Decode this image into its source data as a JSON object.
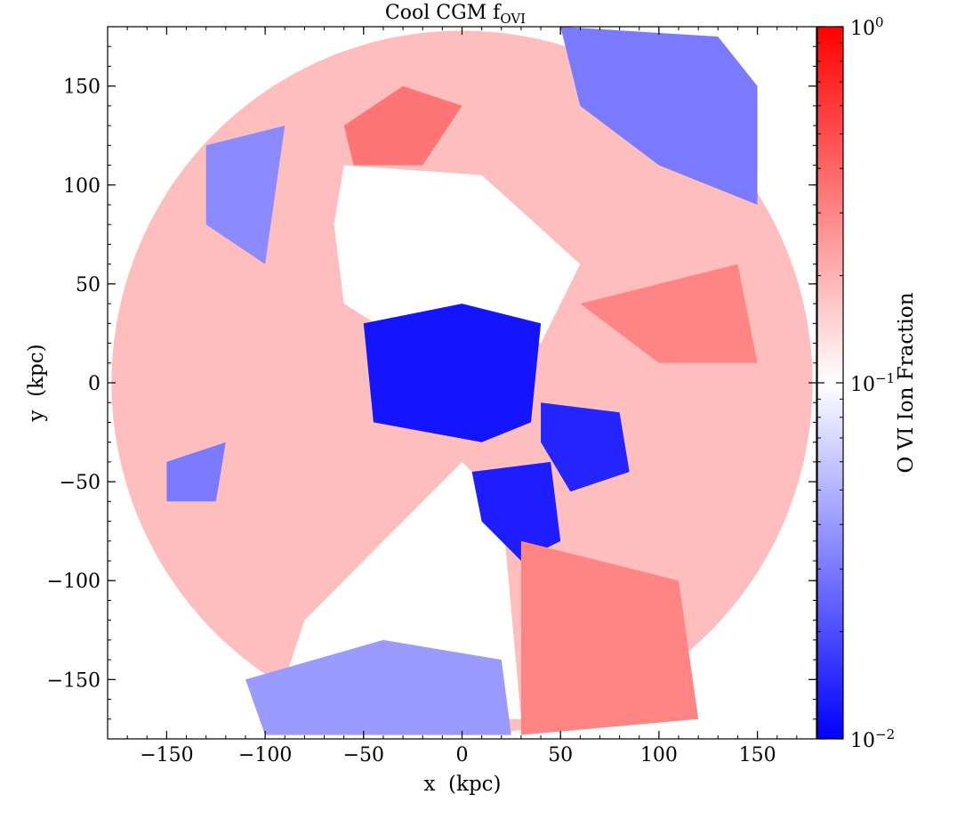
{
  "chart_data": {
    "type": "heatmap",
    "title": "Cool CGM f",
    "title_subscript": "OVI",
    "xlabel": "x  (kpc)",
    "ylabel": "y  (kpc)",
    "xlim": [
      -180,
      180
    ],
    "ylim": [
      -180,
      180
    ],
    "xticks": [
      -150,
      -100,
      -50,
      0,
      50,
      100,
      150
    ],
    "xtick_labels": [
      "−150",
      "−100",
      "−50",
      "0",
      "50",
      "100",
      "150"
    ],
    "yticks": [
      -150,
      -100,
      -50,
      0,
      50,
      100,
      150
    ],
    "ytick_labels": [
      "−150",
      "−100",
      "−50",
      "0",
      "50",
      "100",
      "150"
    ],
    "colorbar": {
      "label": "O VI Ion Fraction",
      "scale": "log",
      "range": [
        0.01,
        1
      ],
      "colormap": "bwr",
      "ticks": [
        {
          "value": 1,
          "base": "10",
          "exp": "0"
        },
        {
          "value": 0.1,
          "base": "10",
          "exp": "−1"
        },
        {
          "value": 0.01,
          "base": "10",
          "exp": "−2"
        }
      ]
    },
    "regions": [
      {
        "name": "outer-ring",
        "level": 0.18,
        "shape": "disk",
        "cx": 0,
        "cy": 0,
        "r": 178
      },
      {
        "name": "central-hole",
        "level": null,
        "points": [
          [
            -60,
            110
          ],
          [
            10,
            105
          ],
          [
            60,
            60
          ],
          [
            40,
            20
          ],
          [
            -20,
            15
          ],
          [
            -60,
            40
          ],
          [
            -65,
            80
          ]
        ]
      },
      {
        "name": "lower-hole",
        "level": null,
        "points": [
          [
            -80,
            -120
          ],
          [
            0,
            -40
          ],
          [
            20,
            -60
          ],
          [
            30,
            -170
          ],
          [
            -60,
            -170
          ],
          [
            -90,
            -150
          ]
        ]
      },
      {
        "name": "center-core",
        "level": 0.012,
        "points": [
          [
            -50,
            30
          ],
          [
            0,
            40
          ],
          [
            40,
            30
          ],
          [
            35,
            -20
          ],
          [
            10,
            -30
          ],
          [
            -45,
            -20
          ]
        ]
      },
      {
        "name": "lower-stream",
        "level": 0.013,
        "points": [
          [
            5,
            -45
          ],
          [
            45,
            -40
          ],
          [
            50,
            -80
          ],
          [
            30,
            -90
          ],
          [
            10,
            -70
          ]
        ]
      },
      {
        "name": "right-clumps",
        "level": 0.014,
        "points": [
          [
            40,
            -10
          ],
          [
            80,
            -15
          ],
          [
            85,
            -45
          ],
          [
            55,
            -55
          ],
          [
            40,
            -30
          ]
        ]
      },
      {
        "name": "bottom-blocks",
        "level": 0.04,
        "points": [
          [
            -110,
            -150
          ],
          [
            -40,
            -130
          ],
          [
            20,
            -140
          ],
          [
            25,
            -178
          ],
          [
            -100,
            -178
          ]
        ]
      },
      {
        "name": "upper-right-blue",
        "level": 0.03,
        "points": [
          [
            50,
            180
          ],
          [
            130,
            175
          ],
          [
            150,
            150
          ],
          [
            150,
            90
          ],
          [
            100,
            110
          ],
          [
            60,
            140
          ]
        ]
      },
      {
        "name": "upper-left-blue",
        "level": 0.035,
        "points": [
          [
            -130,
            120
          ],
          [
            -90,
            130
          ],
          [
            -100,
            60
          ],
          [
            -130,
            80
          ]
        ]
      },
      {
        "name": "left-mid-blue",
        "level": 0.03,
        "points": [
          [
            -150,
            -40
          ],
          [
            -120,
            -30
          ],
          [
            -125,
            -60
          ],
          [
            -150,
            -60
          ]
        ]
      },
      {
        "name": "upper-red",
        "level": 0.35,
        "points": [
          [
            -60,
            130
          ],
          [
            -30,
            150
          ],
          [
            0,
            140
          ],
          [
            -20,
            110
          ],
          [
            -55,
            110
          ]
        ]
      },
      {
        "name": "right-red",
        "level": 0.3,
        "points": [
          [
            60,
            40
          ],
          [
            140,
            60
          ],
          [
            150,
            10
          ],
          [
            100,
            10
          ]
        ]
      },
      {
        "name": "lower-right-red",
        "level": 0.3,
        "points": [
          [
            30,
            -80
          ],
          [
            110,
            -100
          ],
          [
            120,
            -170
          ],
          [
            30,
            -178
          ]
        ]
      }
    ]
  }
}
